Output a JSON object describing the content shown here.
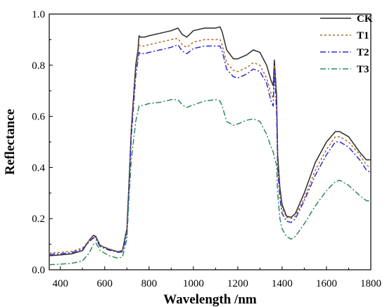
{
  "chart_data": {
    "type": "line",
    "xlabel": "Wavelength /nm",
    "ylabel": "Reflectance",
    "xlim": [
      350,
      1800
    ],
    "ylim": [
      0.0,
      1.0
    ],
    "x_ticks": [
      400,
      600,
      800,
      1000,
      1200,
      1400,
      1600,
      1800
    ],
    "y_ticks": [
      "0.0",
      "0.2",
      "0.4",
      "0.6",
      "0.8",
      "1.0"
    ],
    "grid": false,
    "legend_position": "top-right",
    "series": [
      {
        "name": "CK",
        "color": "#2b2b2b",
        "dash": "solid",
        "x": [
          350,
          400,
          450,
          500,
          530,
          550,
          560,
          580,
          620,
          660,
          680,
          700,
          710,
          720,
          740,
          750,
          755,
          760,
          780,
          800,
          850,
          900,
          930,
          950,
          970,
          1000,
          1050,
          1100,
          1120,
          1130,
          1150,
          1180,
          1200,
          1240,
          1270,
          1300,
          1330,
          1350,
          1360,
          1365,
          1375,
          1380,
          1390,
          1400,
          1420,
          1440,
          1460,
          1500,
          1550,
          1600,
          1640,
          1660,
          1700,
          1750,
          1780,
          1800
        ],
        "y": [
          0.055,
          0.058,
          0.062,
          0.075,
          0.115,
          0.135,
          0.13,
          0.095,
          0.08,
          0.07,
          0.075,
          0.16,
          0.35,
          0.55,
          0.8,
          0.86,
          0.915,
          0.91,
          0.91,
          0.915,
          0.925,
          0.935,
          0.945,
          0.92,
          0.91,
          0.935,
          0.945,
          0.945,
          0.95,
          0.93,
          0.86,
          0.825,
          0.825,
          0.84,
          0.86,
          0.85,
          0.8,
          0.74,
          0.72,
          0.82,
          0.68,
          0.45,
          0.32,
          0.255,
          0.21,
          0.205,
          0.22,
          0.3,
          0.42,
          0.5,
          0.54,
          0.54,
          0.52,
          0.46,
          0.43,
          0.43
        ]
      },
      {
        "name": "T1",
        "color": "#b06a2a",
        "dash": "3,3",
        "x": [
          350,
          400,
          450,
          500,
          530,
          550,
          560,
          580,
          620,
          660,
          680,
          700,
          710,
          720,
          740,
          750,
          755,
          760,
          780,
          800,
          850,
          900,
          930,
          950,
          970,
          1000,
          1050,
          1100,
          1120,
          1130,
          1150,
          1180,
          1200,
          1240,
          1270,
          1300,
          1330,
          1350,
          1360,
          1365,
          1375,
          1380,
          1390,
          1400,
          1420,
          1440,
          1460,
          1500,
          1550,
          1600,
          1640,
          1660,
          1700,
          1750,
          1780,
          1800
        ],
        "y": [
          0.065,
          0.068,
          0.072,
          0.085,
          0.115,
          0.13,
          0.125,
          0.095,
          0.082,
          0.072,
          0.075,
          0.15,
          0.34,
          0.54,
          0.78,
          0.84,
          0.88,
          0.875,
          0.875,
          0.88,
          0.89,
          0.9,
          0.905,
          0.88,
          0.87,
          0.89,
          0.9,
          0.9,
          0.9,
          0.88,
          0.81,
          0.78,
          0.775,
          0.79,
          0.81,
          0.8,
          0.75,
          0.69,
          0.67,
          0.8,
          0.64,
          0.42,
          0.3,
          0.24,
          0.205,
          0.2,
          0.21,
          0.28,
          0.39,
          0.47,
          0.52,
          0.52,
          0.5,
          0.45,
          0.41,
          0.4
        ]
      },
      {
        "name": "T2",
        "color": "#2b2bd6",
        "dash": "8,3,2,3",
        "x": [
          350,
          400,
          450,
          500,
          530,
          550,
          560,
          580,
          620,
          660,
          680,
          700,
          710,
          720,
          740,
          750,
          755,
          760,
          780,
          800,
          850,
          900,
          930,
          950,
          970,
          1000,
          1050,
          1100,
          1120,
          1130,
          1150,
          1180,
          1200,
          1240,
          1270,
          1300,
          1330,
          1350,
          1360,
          1365,
          1375,
          1380,
          1390,
          1400,
          1420,
          1440,
          1460,
          1500,
          1550,
          1600,
          1640,
          1660,
          1700,
          1750,
          1780,
          1800
        ],
        "y": [
          0.06,
          0.063,
          0.067,
          0.08,
          0.11,
          0.125,
          0.12,
          0.09,
          0.077,
          0.068,
          0.07,
          0.14,
          0.33,
          0.52,
          0.76,
          0.82,
          0.85,
          0.845,
          0.845,
          0.85,
          0.86,
          0.87,
          0.88,
          0.855,
          0.845,
          0.865,
          0.875,
          0.875,
          0.875,
          0.855,
          0.785,
          0.755,
          0.75,
          0.765,
          0.785,
          0.775,
          0.73,
          0.66,
          0.64,
          0.78,
          0.62,
          0.4,
          0.28,
          0.22,
          0.19,
          0.185,
          0.2,
          0.27,
          0.37,
          0.45,
          0.5,
          0.5,
          0.48,
          0.43,
          0.39,
          0.38
        ]
      },
      {
        "name": "T3",
        "color": "#2e8b57",
        "dash": "8,3,2,3",
        "x": [
          350,
          400,
          450,
          500,
          530,
          550,
          560,
          580,
          620,
          660,
          680,
          700,
          710,
          720,
          740,
          750,
          755,
          760,
          780,
          800,
          850,
          900,
          930,
          950,
          970,
          1000,
          1050,
          1100,
          1120,
          1130,
          1150,
          1180,
          1200,
          1240,
          1270,
          1300,
          1330,
          1350,
          1360,
          1365,
          1375,
          1380,
          1390,
          1400,
          1420,
          1440,
          1460,
          1500,
          1550,
          1600,
          1640,
          1660,
          1700,
          1750,
          1780,
          1800
        ],
        "y": [
          0.02,
          0.022,
          0.025,
          0.035,
          0.065,
          0.1,
          0.105,
          0.075,
          0.055,
          0.045,
          0.05,
          0.12,
          0.29,
          0.43,
          0.58,
          0.62,
          0.64,
          0.64,
          0.645,
          0.65,
          0.655,
          0.665,
          0.665,
          0.645,
          0.635,
          0.645,
          0.66,
          0.665,
          0.66,
          0.64,
          0.58,
          0.565,
          0.57,
          0.585,
          0.59,
          0.58,
          0.53,
          0.48,
          0.46,
          0.44,
          0.41,
          0.3,
          0.2,
          0.16,
          0.13,
          0.12,
          0.13,
          0.18,
          0.25,
          0.31,
          0.345,
          0.35,
          0.33,
          0.29,
          0.27,
          0.27
        ]
      }
    ]
  }
}
